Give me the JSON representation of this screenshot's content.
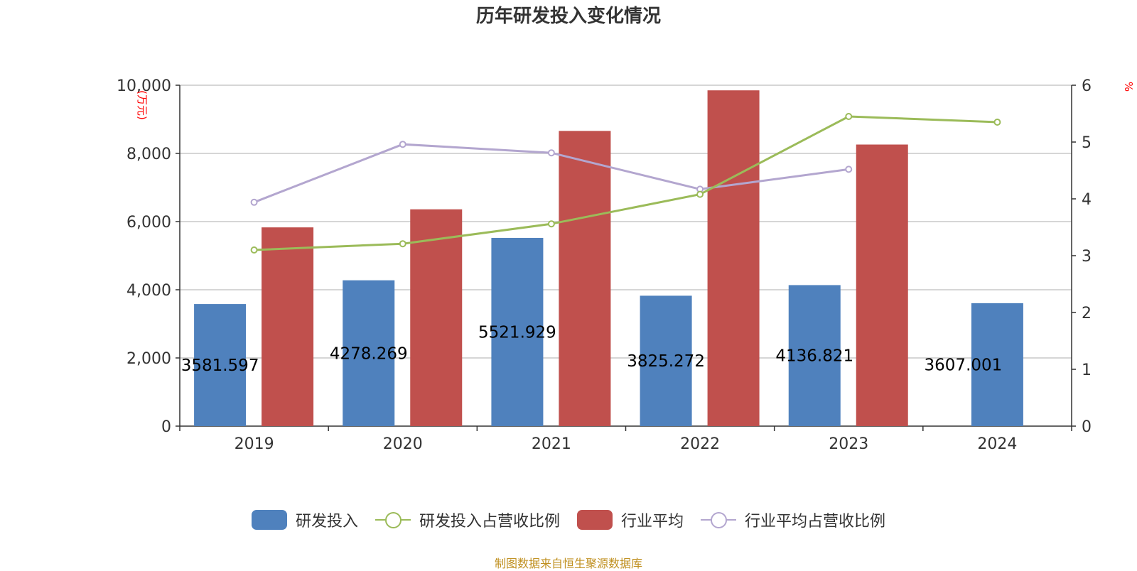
{
  "title": "历年研发投入变化情况",
  "source": "制图数据来自恒生聚源数据库",
  "colors": {
    "rd": "#4f81bd",
    "industry": "#c0504d",
    "rd_ratio": "#9bbb59",
    "industry_ratio": "#b3a6cf",
    "axis_unit": "#ff0000",
    "source": "#c09020",
    "grid": "#c8c8c8",
    "axis": "#333333"
  },
  "chart_data": {
    "type": "bar",
    "categories": [
      "2019",
      "2020",
      "2021",
      "2022",
      "2023",
      "2024"
    ],
    "y_left": {
      "unit": "(万元)",
      "min": 0,
      "max": 10000,
      "ticks": [
        0,
        2000,
        4000,
        6000,
        8000,
        10000
      ],
      "tick_labels": [
        "0",
        "2,000",
        "4,000",
        "6,000",
        "8,000",
        "10,000"
      ]
    },
    "y_right": {
      "unit": "%",
      "min": 0,
      "max": 6,
      "ticks": [
        0,
        1,
        2,
        3,
        4,
        5,
        6
      ],
      "tick_labels": [
        "0",
        "1",
        "2",
        "3",
        "4",
        "5",
        "6"
      ]
    },
    "series": [
      {
        "name": "研发投入",
        "type": "bar",
        "axis": "left",
        "values": [
          3581.597,
          4278.269,
          5521.929,
          3825.272,
          4136.821,
          3607.001
        ],
        "labels": [
          "3581.597",
          "4278.269",
          "5521.929",
          "3825.272",
          "4136.821",
          "3607.001"
        ]
      },
      {
        "name": "研发投入占营收比例",
        "type": "line",
        "axis": "right",
        "values": [
          3.1,
          3.21,
          3.56,
          4.08,
          5.45,
          5.35
        ]
      },
      {
        "name": "行业平均",
        "type": "bar",
        "axis": "left",
        "values": [
          5830,
          6360,
          8660,
          9850,
          8260,
          null
        ]
      },
      {
        "name": "行业平均占营收比例",
        "type": "line",
        "axis": "right",
        "values": [
          3.94,
          4.96,
          4.81,
          4.17,
          4.52,
          null
        ]
      }
    ],
    "legend_position": "bottom"
  }
}
